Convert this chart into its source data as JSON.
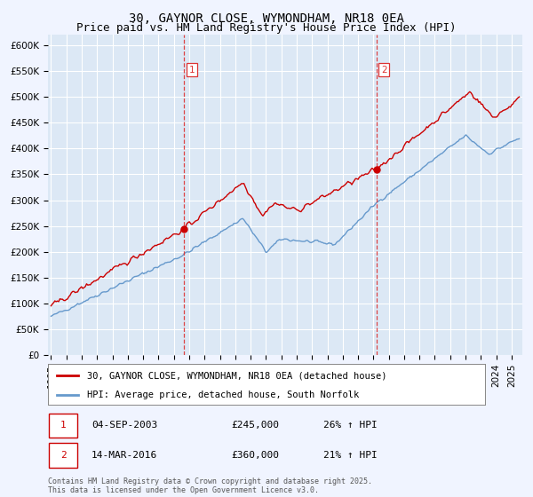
{
  "title": "30, GAYNOR CLOSE, WYMONDHAM, NR18 0EA",
  "subtitle": "Price paid vs. HM Land Registry's House Price Index (HPI)",
  "ylim": [
    0,
    620000
  ],
  "yticks": [
    0,
    50000,
    100000,
    150000,
    200000,
    250000,
    300000,
    350000,
    400000,
    450000,
    500000,
    550000,
    600000
  ],
  "ytick_labels": [
    "£0",
    "£50K",
    "£100K",
    "£150K",
    "£200K",
    "£250K",
    "£300K",
    "£350K",
    "£400K",
    "£450K",
    "£500K",
    "£550K",
    "£600K"
  ],
  "purchase1_date": "04-SEP-2003",
  "purchase1_price": 245000,
  "purchase1_year": 2003.67,
  "purchase1_label": "26% ↑ HPI",
  "purchase2_date": "14-MAR-2016",
  "purchase2_price": 360000,
  "purchase2_year": 2016.2,
  "purchase2_label": "21% ↑ HPI",
  "legend_line1": "30, GAYNOR CLOSE, WYMONDHAM, NR18 0EA (detached house)",
  "legend_line2": "HPI: Average price, detached house, South Norfolk",
  "footer": "Contains HM Land Registry data © Crown copyright and database right 2025.\nThis data is licensed under the Open Government Licence v3.0.",
  "bg_color": "#f0f4ff",
  "plot_bg_color": "#dce8f5",
  "red_line_color": "#cc0000",
  "blue_line_color": "#6699cc",
  "grid_color": "#ffffff",
  "vline_color": "#dd3333",
  "marker_box_color": "#cc0000",
  "title_fontsize": 10,
  "subtitle_fontsize": 9,
  "tick_fontsize": 7.5
}
